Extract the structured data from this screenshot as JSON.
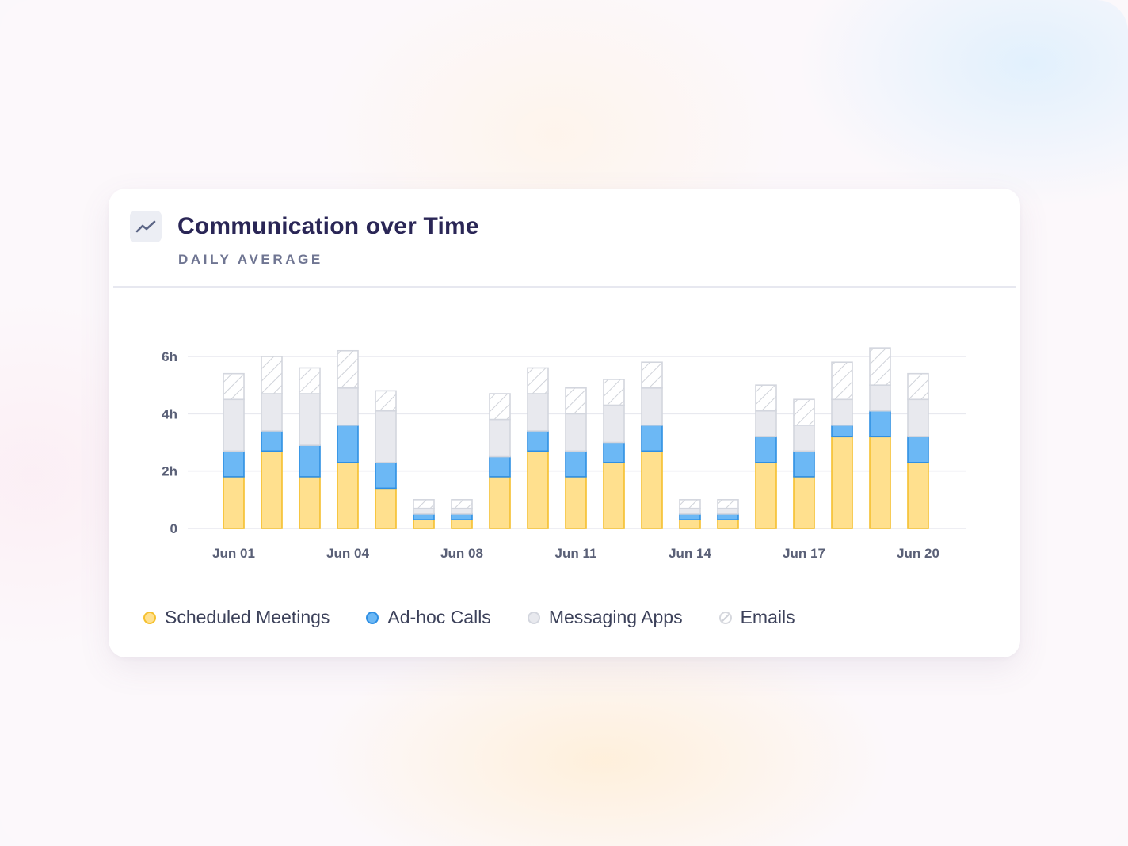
{
  "card": {
    "title": "Communication over Time",
    "subtitle": "DAILY AVERAGE",
    "icon": "trend-line-icon"
  },
  "colors": {
    "scheduled_fill": "#ffe08e",
    "scheduled_stroke": "#f5c02e",
    "adhoc_fill": "#6cb8f5",
    "adhoc_stroke": "#2f8fe3",
    "messaging_fill": "#e8e9ee",
    "messaging_stroke": "#d3d6de",
    "emails_hatch": "#cfd2d9"
  },
  "chart_data": {
    "type": "bar",
    "stacked": true,
    "categories": [
      "Jun 01",
      "Jun 02",
      "Jun 03",
      "Jun 04",
      "Jun 05",
      "Jun 06",
      "Jun 08",
      "Jun 09",
      "Jun 10",
      "Jun 11",
      "Jun 12",
      "Jun 13",
      "Jun 14",
      "Jun 15",
      "Jun 16",
      "Jun 17",
      "Jun 18",
      "Jun 19",
      "Jun 20"
    ],
    "x_tick_labels": [
      "Jun 01",
      "Jun 04",
      "Jun 08",
      "Jun 11",
      "Jun 14",
      "Jun 17",
      "Jun 20"
    ],
    "y_tick_labels": [
      "0",
      "2h",
      "4h",
      "6h"
    ],
    "y_ticks": [
      0,
      2,
      4,
      6
    ],
    "ylim": [
      0,
      6
    ],
    "grid": true,
    "legend_position": "bottom-left",
    "series": [
      {
        "name": "Scheduled Meetings",
        "values": [
          1.8,
          2.7,
          1.8,
          2.3,
          1.4,
          0.3,
          0.3,
          1.8,
          2.7,
          1.8,
          2.3,
          2.7,
          0.3,
          0.3,
          2.3,
          1.8,
          3.2,
          3.2,
          2.3
        ]
      },
      {
        "name": "Ad-hoc Calls",
        "values": [
          0.9,
          0.7,
          1.1,
          1.3,
          0.9,
          0.2,
          0.2,
          0.7,
          0.7,
          0.9,
          0.7,
          0.9,
          0.2,
          0.2,
          0.9,
          0.9,
          0.4,
          0.9,
          0.9
        ]
      },
      {
        "name": "Messaging Apps",
        "values": [
          1.8,
          1.3,
          1.8,
          1.3,
          1.8,
          0.2,
          0.2,
          1.3,
          1.3,
          1.3,
          1.3,
          1.3,
          0.2,
          0.2,
          0.9,
          0.9,
          0.9,
          0.9,
          1.3
        ]
      },
      {
        "name": "Emails",
        "values": [
          0.9,
          1.3,
          0.9,
          1.3,
          0.7,
          0.3,
          0.3,
          0.9,
          0.9,
          0.9,
          0.9,
          0.9,
          0.3,
          0.3,
          0.9,
          0.9,
          1.3,
          1.3,
          0.9
        ]
      }
    ]
  }
}
